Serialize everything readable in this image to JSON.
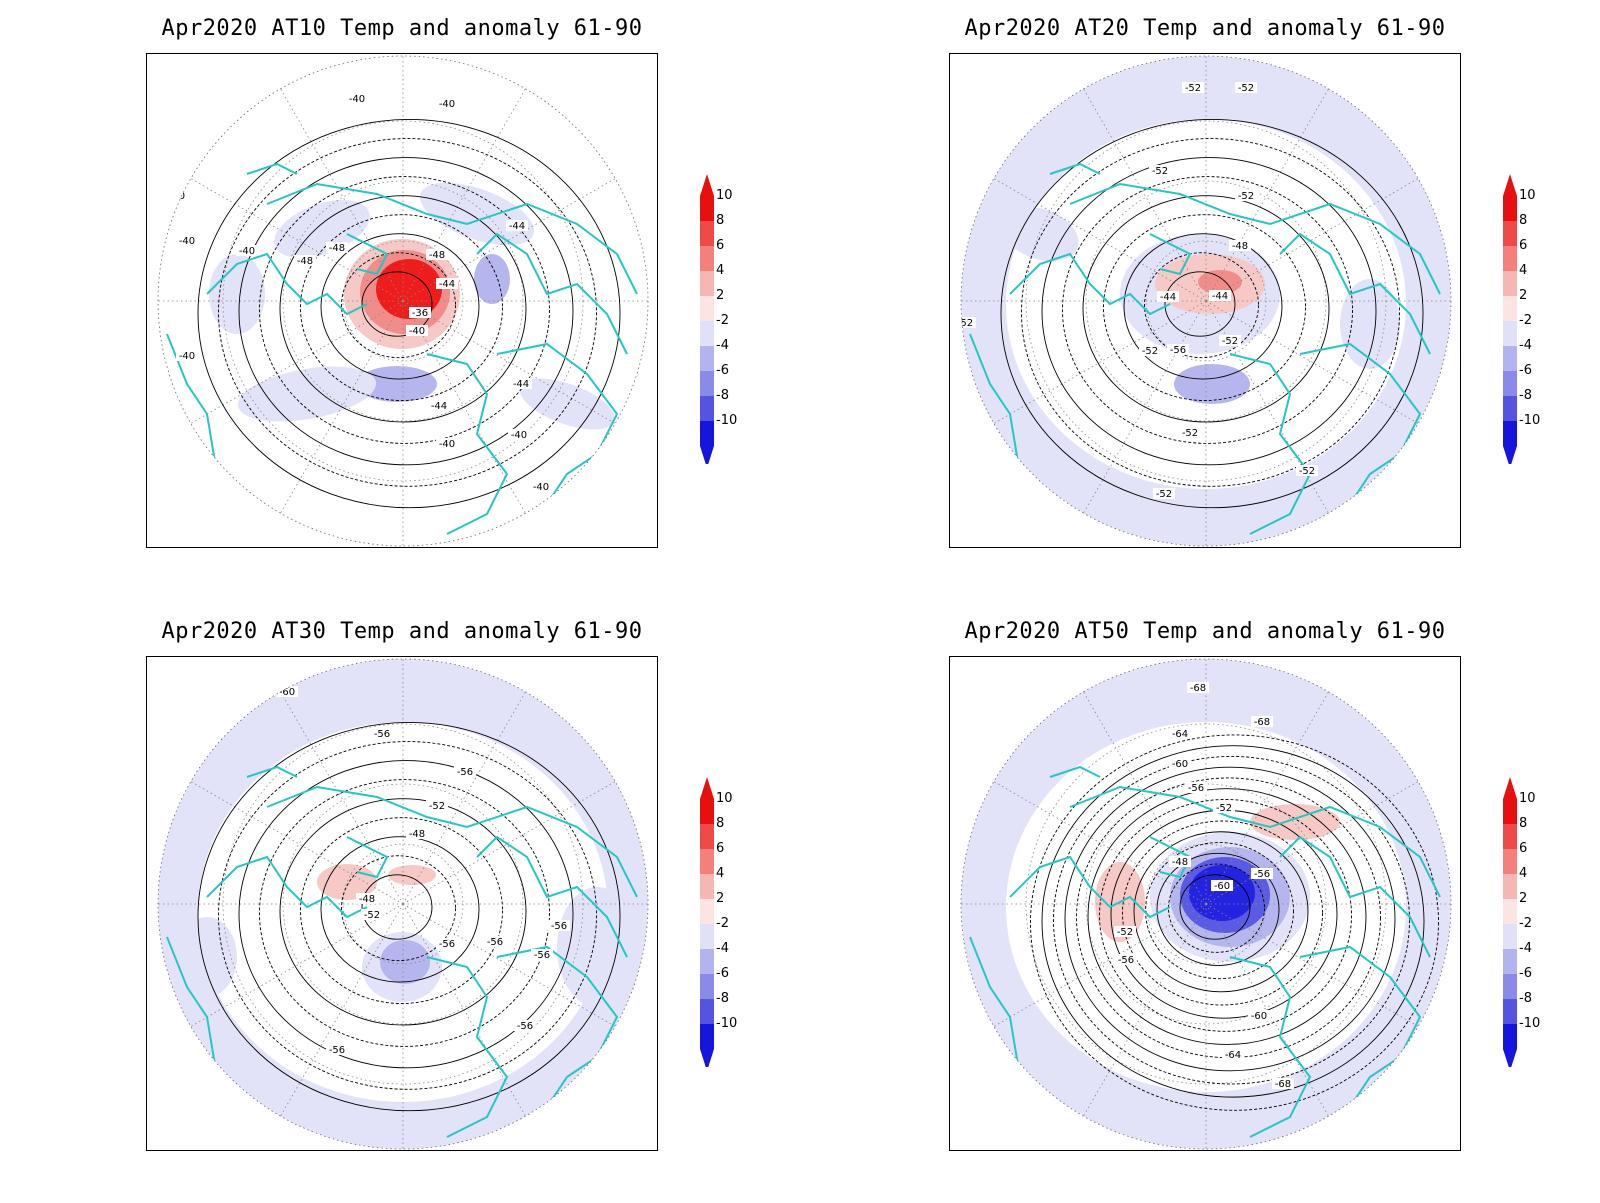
{
  "panels": [
    {
      "title": "Apr2020 AT10 Temp and anomaly 61-90",
      "contour_labels": [
        "-40",
        "-40",
        "-40",
        "-40",
        "-40",
        "-40",
        "-44",
        "-44",
        "-44",
        "-48",
        "-48",
        "-48",
        "-36",
        "-40",
        "-44",
        "-40",
        "-40",
        "-40"
      ],
      "anomaly_pattern": "strong-warm-center"
    },
    {
      "title": "Apr2020 AT20 Temp and anomaly 61-90",
      "contour_labels": [
        "-52",
        "-52",
        "-52",
        "-52",
        "-52",
        "-48",
        "-44",
        "-44",
        "-52",
        "-56",
        "-52",
        "-52",
        "-52",
        "-52"
      ],
      "anomaly_pattern": "weak-warm-center"
    },
    {
      "title": "Apr2020 AT30 Temp and anomaly 61-90",
      "contour_labels": [
        "-60",
        "-56",
        "-56",
        "-52",
        "-48",
        "-48",
        "-52",
        "-56",
        "-56",
        "-56",
        "-56",
        "-56",
        "-56"
      ],
      "anomaly_pattern": "weak-cold"
    },
    {
      "title": "Apr2020 AT50 Temp and anomaly 61-90",
      "contour_labels": [
        "-68",
        "-68",
        "-64",
        "-60",
        "-56",
        "-52",
        "-48",
        "-56",
        "-60",
        "-52",
        "-56",
        "-60",
        "-64",
        "-68"
      ],
      "anomaly_pattern": "strong-cold-center"
    }
  ],
  "colorbar": {
    "labels": [
      "10",
      "8",
      "6",
      "4",
      "2",
      "-2",
      "-4",
      "-6",
      "-8",
      "-10"
    ],
    "colors": [
      "#e8100f",
      "#f04a48",
      "#f3807d",
      "#f6b6b3",
      "#fbe4e2",
      "#e0e0f6",
      "#b3b3ef",
      "#8a8ae8",
      "#5454e0",
      "#1515dd"
    ]
  },
  "colors": {
    "coast": "#25c7c2",
    "contour": "#000000",
    "light_blue": "#e2e2f8",
    "mid_blue": "#b6b6ee",
    "dark_blue": "#2323e0",
    "light_red": "#f6c8c6",
    "mid_red": "#f08d8a",
    "strong_red": "#ee1d1c"
  }
}
